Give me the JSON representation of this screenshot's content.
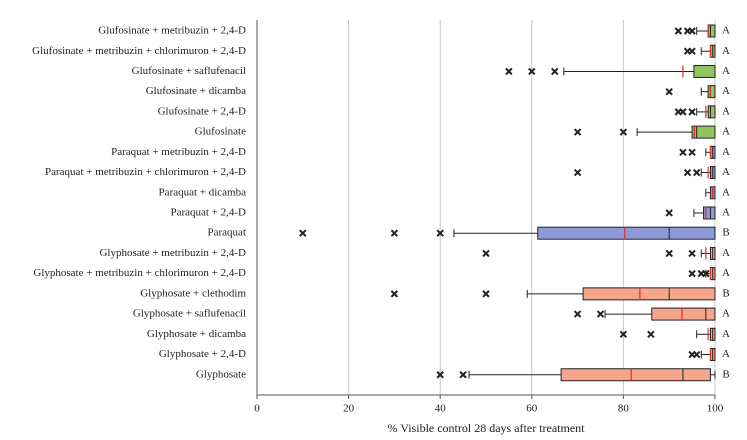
{
  "chart_data": {
    "type": "box",
    "xlabel": "% Visible control 28 days after treatment",
    "categories": [
      "Glufosinate + metribuzin + 2,4-D",
      "Glufosinate + metribuzin + chlorimuron + 2,4-D",
      "Glufosinate + saflufenacil",
      "Glufosinate + dicamba",
      "Glufosinate + 2,4-D",
      "Glufosinate",
      "Paraquat + metribuzin + 2,4-D",
      "Paraquat + metribuzin + chlorimuron + 2,4-D",
      "Paraquat + dicamba",
      "Paraquat + 2,4-D",
      "Paraquat",
      "Glyphosate + metribuzin + 2,4-D",
      "Glyphosate + metribuzin + chlorimuron + 2,4-D",
      "Glyphosate + clethodim",
      "Glyphosate + saflufenacil",
      "Glyphosate + dicamba",
      "Glyphosate + 2,4-D",
      "Glyphosate"
    ],
    "min": [
      96,
      97,
      67,
      97,
      96,
      83,
      98,
      97,
      98,
      95.4,
      43,
      97,
      98,
      59,
      76,
      96,
      97,
      46.3
    ],
    "q1": [
      98.5,
      99,
      95.4,
      98.5,
      98.5,
      95,
      99,
      99,
      99,
      97.5,
      61.3,
      99,
      99,
      71.2,
      86.2,
      99,
      99,
      66.4
    ],
    "median": [
      99,
      99.5,
      100,
      99,
      99,
      96,
      99.5,
      99.5,
      99.5,
      99,
      90,
      99.5,
      99.5,
      90,
      98,
      99.5,
      99.5,
      93
    ],
    "q3": [
      100,
      100,
      100,
      100,
      100,
      100,
      100,
      100,
      100,
      100,
      100,
      100,
      100,
      100,
      100,
      100,
      100,
      99
    ],
    "max": [
      100,
      100,
      100,
      100,
      100,
      100,
      100,
      100,
      100,
      100,
      100,
      100,
      100,
      100,
      100,
      100,
      100,
      100
    ],
    "mean": [
      98.5,
      99,
      93,
      99,
      98,
      95.5,
      99,
      98.5,
      99.5,
      98,
      80.3,
      98,
      99,
      83.6,
      92.8,
      98.5,
      99,
      81.7
    ],
    "outliers": [
      [
        92,
        94,
        95
      ],
      [
        94,
        95
      ],
      [
        55,
        60,
        65
      ],
      [
        90
      ],
      [
        92,
        93,
        95
      ],
      [
        70,
        80
      ],
      [
        93,
        95
      ],
      [
        70,
        94,
        96
      ],
      [],
      [
        90
      ],
      [
        10,
        30,
        40
      ],
      [
        50,
        90,
        95
      ],
      [
        95,
        97,
        98
      ],
      [
        30,
        50
      ],
      [
        70,
        75
      ],
      [
        80,
        86
      ],
      [
        95,
        96
      ],
      [
        40,
        45
      ]
    ],
    "letters": [
      "A",
      "A",
      "A",
      "A",
      "A",
      "A",
      "A",
      "A",
      "A",
      "A",
      "B",
      "A",
      "A",
      "B",
      "A",
      "A",
      "A",
      "B"
    ],
    "colors": [
      "#93c462",
      "#93c462",
      "#93c462",
      "#93c462",
      "#93c462",
      "#93c462",
      "#8e9ad8",
      "#8e9ad8",
      "#8e9ad8",
      "#8e9ad8",
      "#8e9ad8",
      "#f4a58b",
      "#f4a58b",
      "#f4a58b",
      "#f4a58b",
      "#f4a58b",
      "#f4a58b",
      "#f4a58b"
    ],
    "mean_color": "#e03020",
    "xlim": [
      0,
      100
    ],
    "xticks": [
      0,
      20,
      40,
      60,
      80,
      100
    ],
    "grid": true
  }
}
